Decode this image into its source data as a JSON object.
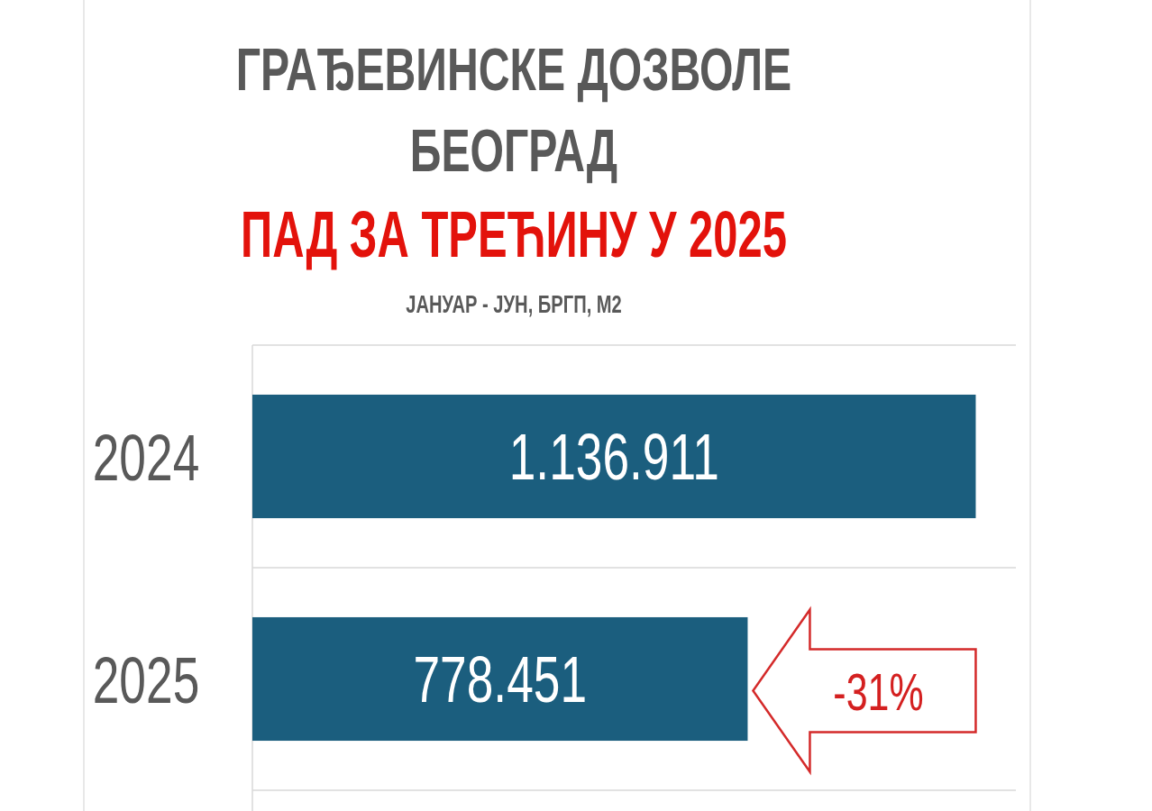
{
  "chart_data": {
    "type": "bar",
    "orientation": "horizontal",
    "title": "ГРАЂЕВИНСКЕ ДОЗВОЛЕ БЕОГРАД",
    "subtitle": "ПАД ЗА ТРЕЋИНУ У 2025",
    "annotations": [
      "ЈАНУАР - ЈУН, БРГП, М2",
      {
        "text": "-31%",
        "x": 778451,
        "y": "2025"
      }
    ],
    "categories": [
      "2024",
      "2025"
    ],
    "values": [
      1136911,
      778451
    ],
    "color": "#1b5e7e",
    "value_labels": [
      "1.136.911",
      "778.451"
    ],
    "xlim": [
      0,
      1200000
    ],
    "grid": "y",
    "tick_labels": "y"
  }
}
